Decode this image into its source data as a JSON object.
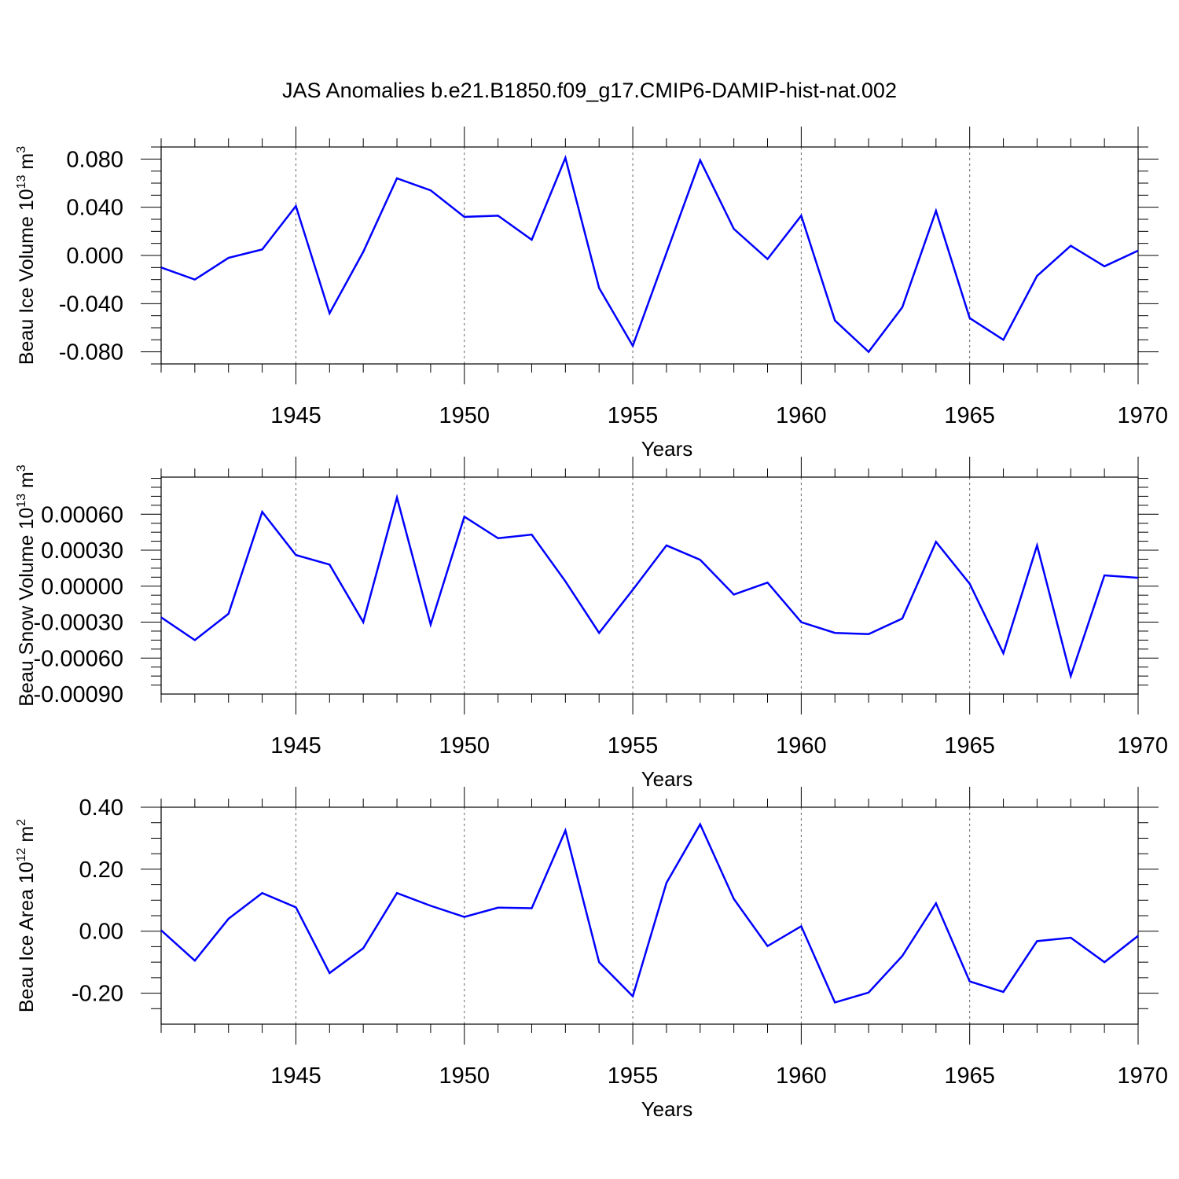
{
  "title": "JAS Anomalies b.e21.B1850.f09_g17.CMIP6-DAMIP-hist-nat.002",
  "colors": {
    "line": "#0000ff",
    "axis": "#000000",
    "grid": "#666666"
  },
  "chart_data": [
    {
      "type": "line",
      "ylabel": "Beau Ice Volume 10",
      "ylabel_exp": "13",
      "ylabel_unit": " m",
      "ylabel_unit_exp": "3",
      "xlabel": "Years",
      "xlim": [
        1941,
        1970
      ],
      "ylim": [
        -0.09,
        0.09
      ],
      "yticks": [
        -0.08,
        -0.04,
        0.0,
        0.04,
        0.08
      ],
      "ytick_labels": [
        "-0.080",
        "-0.040",
        "0.000",
        "0.040",
        "0.080"
      ],
      "xticks": [
        1945,
        1950,
        1955,
        1960,
        1965,
        1970
      ],
      "xtick_labels": [
        "1945",
        "1950",
        "1955",
        "1960",
        "1965",
        "1970"
      ],
      "grid": "vertical dashed at major x ticks",
      "x": [
        1941,
        1942,
        1943,
        1944,
        1945,
        1946,
        1947,
        1948,
        1949,
        1950,
        1951,
        1952,
        1953,
        1954,
        1955,
        1956,
        1957,
        1958,
        1959,
        1960,
        1961,
        1962,
        1963,
        1964,
        1965,
        1966,
        1967,
        1968,
        1969,
        1970
      ],
      "series": [
        {
          "values": [
            -0.01,
            -0.02,
            -0.002,
            0.005,
            0.041,
            -0.048,
            0.003,
            0.064,
            0.054,
            0.032,
            0.033,
            0.013,
            0.081,
            -0.027,
            -0.075,
            0.002,
            0.079,
            0.022,
            -0.003,
            0.033,
            -0.054,
            -0.08,
            -0.043,
            0.037,
            -0.052,
            -0.07,
            -0.017,
            0.008,
            -0.009,
            0.004
          ]
        }
      ]
    },
    {
      "type": "line",
      "ylabel": "Beau Snow Volume 10",
      "ylabel_exp": "13",
      "ylabel_unit": " m",
      "ylabel_unit_exp": "3",
      "xlabel": "Years",
      "xlim": [
        1941,
        1970
      ],
      "ylim": [
        -0.0009,
        0.00091
      ],
      "yticks": [
        -0.0009,
        -0.0006,
        -0.0003,
        0.0,
        0.0003,
        0.0006
      ],
      "ytick_labels": [
        "-0.00090",
        "-0.00060",
        "-0.00030",
        "0.00000",
        "0.00030",
        "0.00060"
      ],
      "xticks": [
        1945,
        1950,
        1955,
        1960,
        1965,
        1970
      ],
      "xtick_labels": [
        "1945",
        "1950",
        "1955",
        "1960",
        "1965",
        "1970"
      ],
      "grid": "vertical dashed at major x ticks",
      "x": [
        1941,
        1942,
        1943,
        1944,
        1945,
        1946,
        1947,
        1948,
        1949,
        1950,
        1951,
        1952,
        1953,
        1954,
        1955,
        1956,
        1957,
        1958,
        1959,
        1960,
        1961,
        1962,
        1963,
        1964,
        1965,
        1966,
        1967,
        1968,
        1969,
        1970
      ],
      "series": [
        {
          "values": [
            -0.00026,
            -0.00045,
            -0.00023,
            0.00062,
            0.00026,
            0.00018,
            -0.0003,
            0.00074,
            -0.00032,
            0.00058,
            0.0004,
            0.00043,
            4e-05,
            -0.00039,
            -3e-05,
            0.00034,
            0.00022,
            -7e-05,
            3e-05,
            -0.0003,
            -0.00039,
            -0.0004,
            -0.00027,
            0.00037,
            2e-05,
            -0.00056,
            0.00034,
            -0.00075,
            9e-05,
            7e-05
          ]
        }
      ]
    },
    {
      "type": "line",
      "ylabel": "Beau Ice Area 10",
      "ylabel_exp": "12",
      "ylabel_unit": " m",
      "ylabel_unit_exp": "2",
      "xlabel": "Years",
      "xlim": [
        1941,
        1970
      ],
      "ylim": [
        -0.3,
        0.4
      ],
      "yticks": [
        -0.2,
        0.0,
        0.2,
        0.4
      ],
      "ytick_labels": [
        "-0.20",
        "0.00",
        "0.20",
        "0.40"
      ],
      "xticks": [
        1945,
        1950,
        1955,
        1960,
        1965,
        1970
      ],
      "xtick_labels": [
        "1945",
        "1950",
        "1955",
        "1960",
        "1965",
        "1970"
      ],
      "grid": "vertical dashed at major x ticks",
      "x": [
        1941,
        1942,
        1943,
        1944,
        1945,
        1946,
        1947,
        1948,
        1949,
        1950,
        1951,
        1952,
        1953,
        1954,
        1955,
        1956,
        1957,
        1958,
        1959,
        1960,
        1961,
        1962,
        1963,
        1964,
        1965,
        1966,
        1967,
        1968,
        1969,
        1970
      ],
      "series": [
        {
          "values": [
            0.003,
            -0.095,
            0.04,
            0.123,
            0.077,
            -0.135,
            -0.055,
            0.123,
            0.082,
            0.046,
            0.076,
            0.074,
            0.325,
            -0.1,
            -0.21,
            0.156,
            0.345,
            0.104,
            -0.048,
            0.016,
            -0.23,
            -0.198,
            -0.08,
            0.09,
            -0.162,
            -0.196,
            -0.032,
            -0.021,
            -0.1,
            -0.015
          ]
        }
      ]
    }
  ]
}
